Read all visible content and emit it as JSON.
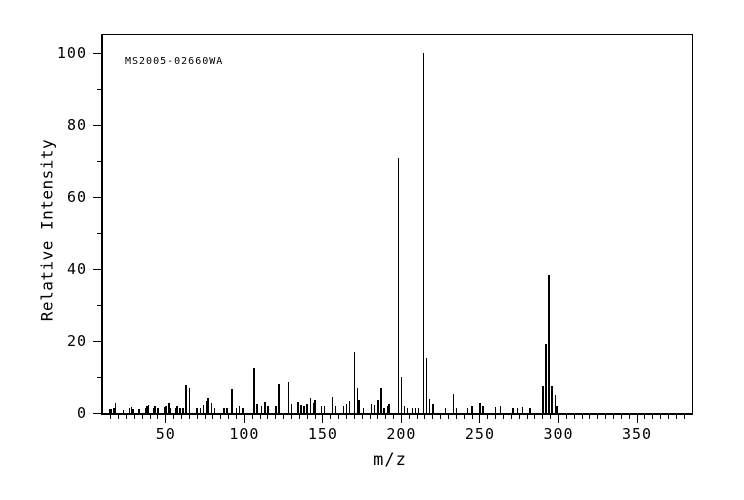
{
  "chart_data": {
    "type": "bar",
    "subtype": "mass-spectrum",
    "annotation": "MS2005-02660WA",
    "xlabel": "m/z",
    "ylabel": "Relative Intensity",
    "xlim": [
      10,
      385
    ],
    "ylim": [
      0,
      105
    ],
    "x_ticks": [
      50,
      100,
      150,
      200,
      250,
      300,
      350
    ],
    "x_tick_labels": [
      "50",
      "100",
      "150",
      "200",
      "250",
      "300",
      "350"
    ],
    "x_minor_tick_step": 5,
    "y_ticks": [
      0,
      20,
      40,
      60,
      80,
      100
    ],
    "y_tick_labels": [
      "0",
      "20",
      "40",
      "60",
      "80",
      "100"
    ],
    "y_minor_tick_step": 10,
    "grid": false,
    "line_color": "#000000",
    "background_color": "#ffffff",
    "peaks": [
      [
        14,
        1
      ],
      [
        15,
        1
      ],
      [
        17,
        1.4
      ],
      [
        18,
        2.8
      ],
      [
        23,
        0.8
      ],
      [
        27,
        1.4
      ],
      [
        28,
        1.6
      ],
      [
        29,
        1.2
      ],
      [
        33,
        1
      ],
      [
        37,
        1.5
      ],
      [
        38,
        1.9
      ],
      [
        39,
        2.2
      ],
      [
        42,
        1.5
      ],
      [
        43,
        1.9
      ],
      [
        45,
        1.3
      ],
      [
        49,
        1.6
      ],
      [
        50,
        2
      ],
      [
        52,
        2.9
      ],
      [
        53,
        1.5
      ],
      [
        56,
        1.5
      ],
      [
        57,
        1.9
      ],
      [
        59,
        1.3
      ],
      [
        61,
        1.5
      ],
      [
        63,
        7.8
      ],
      [
        65,
        7
      ],
      [
        70,
        1.3
      ],
      [
        72,
        1.5
      ],
      [
        74,
        2.2
      ],
      [
        76,
        3.2
      ],
      [
        77,
        4.1
      ],
      [
        79,
        2.8
      ],
      [
        81,
        1.5
      ],
      [
        87,
        1.3
      ],
      [
        89,
        1.5
      ],
      [
        92,
        6.7
      ],
      [
        95,
        1.5
      ],
      [
        97,
        2
      ],
      [
        99,
        1.5
      ],
      [
        106,
        12.6
      ],
      [
        108,
        2.5
      ],
      [
        111,
        2
      ],
      [
        113,
        3
      ],
      [
        115,
        2
      ],
      [
        120,
        2
      ],
      [
        122,
        8
      ],
      [
        128,
        8.6
      ],
      [
        130,
        2.5
      ],
      [
        134,
        3.1
      ],
      [
        136,
        2.2
      ],
      [
        138,
        2
      ],
      [
        140,
        2.5
      ],
      [
        142,
        4.3
      ],
      [
        144,
        2.8
      ],
      [
        145,
        3.5
      ],
      [
        149,
        2
      ],
      [
        151,
        2
      ],
      [
        156,
        4.4
      ],
      [
        158,
        2
      ],
      [
        163,
        1.9
      ],
      [
        165,
        2.6
      ],
      [
        167,
        3.2
      ],
      [
        170,
        16.9
      ],
      [
        172,
        6.9
      ],
      [
        173,
        3.5
      ],
      [
        176,
        1.5
      ],
      [
        181,
        2.6
      ],
      [
        183,
        2.2
      ],
      [
        185,
        3.7
      ],
      [
        187,
        6.9
      ],
      [
        189,
        1.4
      ],
      [
        191,
        2
      ],
      [
        192,
        2.6
      ],
      [
        198,
        70.8
      ],
      [
        200,
        10.1
      ],
      [
        202,
        2
      ],
      [
        204,
        1.5
      ],
      [
        207,
        1.4
      ],
      [
        209,
        1.5
      ],
      [
        211,
        1.5
      ],
      [
        214,
        100
      ],
      [
        216,
        15.3
      ],
      [
        218,
        3.9
      ],
      [
        220,
        2.4
      ],
      [
        228,
        1.5
      ],
      [
        233,
        5.2
      ],
      [
        235,
        1.5
      ],
      [
        242,
        1.5
      ],
      [
        245,
        2
      ],
      [
        250,
        2.9
      ],
      [
        252,
        2
      ],
      [
        260,
        1.8
      ],
      [
        263,
        2
      ],
      [
        271,
        1.5
      ],
      [
        274,
        1.5
      ],
      [
        277,
        1.8
      ],
      [
        282,
        1.5
      ],
      [
        290,
        7.5
      ],
      [
        292,
        19.2
      ],
      [
        294,
        38.3
      ],
      [
        296,
        7.5
      ],
      [
        298,
        5
      ],
      [
        299,
        2
      ]
    ]
  }
}
